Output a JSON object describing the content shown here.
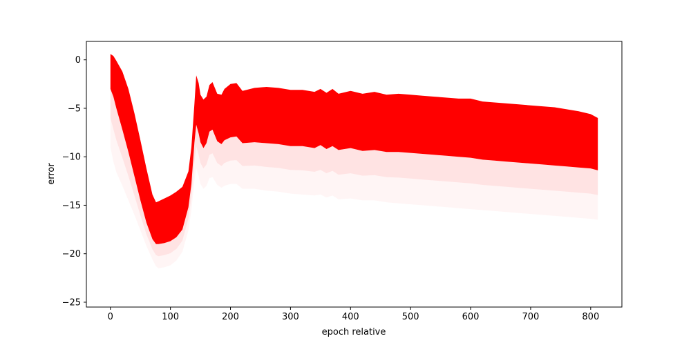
{
  "chart_data": {
    "type": "area",
    "title": "",
    "xlabel": "epoch relative",
    "ylabel": "error",
    "xlim": [
      -40,
      852
    ],
    "ylim": [
      -25.5,
      1.9
    ],
    "xticks": [
      0,
      100,
      200,
      300,
      400,
      500,
      600,
      700,
      800
    ],
    "yticks": [
      0,
      -5,
      -10,
      -15,
      -20,
      -25
    ],
    "grid": false,
    "legend": "none",
    "color": "#ff0000",
    "series": [
      {
        "x": [
          0,
          5,
          10,
          20,
          30,
          40,
          50,
          60,
          70,
          76,
          80,
          90,
          100,
          110,
          120,
          130,
          135,
          140,
          143,
          147,
          150,
          155,
          160,
          165,
          170,
          178,
          185,
          190,
          200,
          210,
          220,
          240,
          260,
          280,
          300,
          320,
          340,
          350,
          360,
          370,
          380,
          400,
          420,
          440,
          460,
          480,
          500,
          520,
          540,
          560,
          580,
          600,
          620,
          640,
          660,
          680,
          700,
          720,
          740,
          760,
          780,
          800,
          812
        ],
        "upper": [
          0.6,
          0.4,
          -0.1,
          -1.2,
          -3.0,
          -5.5,
          -8.3,
          -11.2,
          -13.9,
          -14.7,
          -14.6,
          -14.3,
          -14.0,
          -13.6,
          -13.1,
          -11.5,
          -9.0,
          -4.5,
          -1.6,
          -2.4,
          -3.6,
          -4.1,
          -3.8,
          -2.6,
          -2.3,
          -3.5,
          -3.6,
          -3.0,
          -2.5,
          -2.4,
          -3.2,
          -2.9,
          -2.8,
          -2.9,
          -3.1,
          -3.1,
          -3.3,
          -3.0,
          -3.4,
          -3.0,
          -3.5,
          -3.2,
          -3.5,
          -3.3,
          -3.6,
          -3.5,
          -3.6,
          -3.7,
          -3.8,
          -3.9,
          -4.0,
          -4.0,
          -4.3,
          -4.4,
          -4.5,
          -4.6,
          -4.7,
          -4.8,
          -4.9,
          -5.1,
          -5.3,
          -5.6,
          -6.0
        ],
        "lower": [
          -3.0,
          -3.8,
          -5.0,
          -7.2,
          -9.5,
          -12.0,
          -14.5,
          -16.8,
          -18.5,
          -19.0,
          -19.0,
          -18.9,
          -18.7,
          -18.3,
          -17.5,
          -15.2,
          -12.8,
          -8.5,
          -6.7,
          -7.6,
          -8.5,
          -9.1,
          -8.6,
          -7.4,
          -7.2,
          -8.4,
          -8.7,
          -8.3,
          -8.0,
          -7.9,
          -8.6,
          -8.5,
          -8.6,
          -8.7,
          -8.9,
          -8.9,
          -9.1,
          -8.8,
          -9.2,
          -8.9,
          -9.3,
          -9.1,
          -9.4,
          -9.3,
          -9.5,
          -9.5,
          -9.6,
          -9.7,
          -9.8,
          -9.9,
          -10.0,
          -10.1,
          -10.3,
          -10.4,
          -10.5,
          -10.6,
          -10.7,
          -10.8,
          -10.9,
          -11.0,
          -11.1,
          -11.2,
          -11.4
        ],
        "faint_lower": [
          -9.0,
          -10.5,
          -11.6,
          -13.0,
          -14.5,
          -16.0,
          -17.6,
          -19.2,
          -20.6,
          -21.3,
          -21.5,
          -21.4,
          -21.2,
          -20.7,
          -19.8,
          -17.6,
          -15.5,
          -12.5,
          -11.2,
          -12.0,
          -12.8,
          -13.3,
          -13.0,
          -12.2,
          -12.1,
          -12.9,
          -13.2,
          -13.0,
          -12.8,
          -12.8,
          -13.3,
          -13.3,
          -13.5,
          -13.6,
          -13.8,
          -13.9,
          -14.0,
          -13.9,
          -14.2,
          -14.0,
          -14.4,
          -14.3,
          -14.5,
          -14.5,
          -14.7,
          -14.8,
          -14.9,
          -15.0,
          -15.1,
          -15.2,
          -15.3,
          -15.4,
          -15.5,
          -15.6,
          -15.7,
          -15.8,
          -15.9,
          -16.0,
          -16.1,
          -16.2,
          -16.3,
          -16.4,
          -16.5
        ]
      }
    ]
  }
}
